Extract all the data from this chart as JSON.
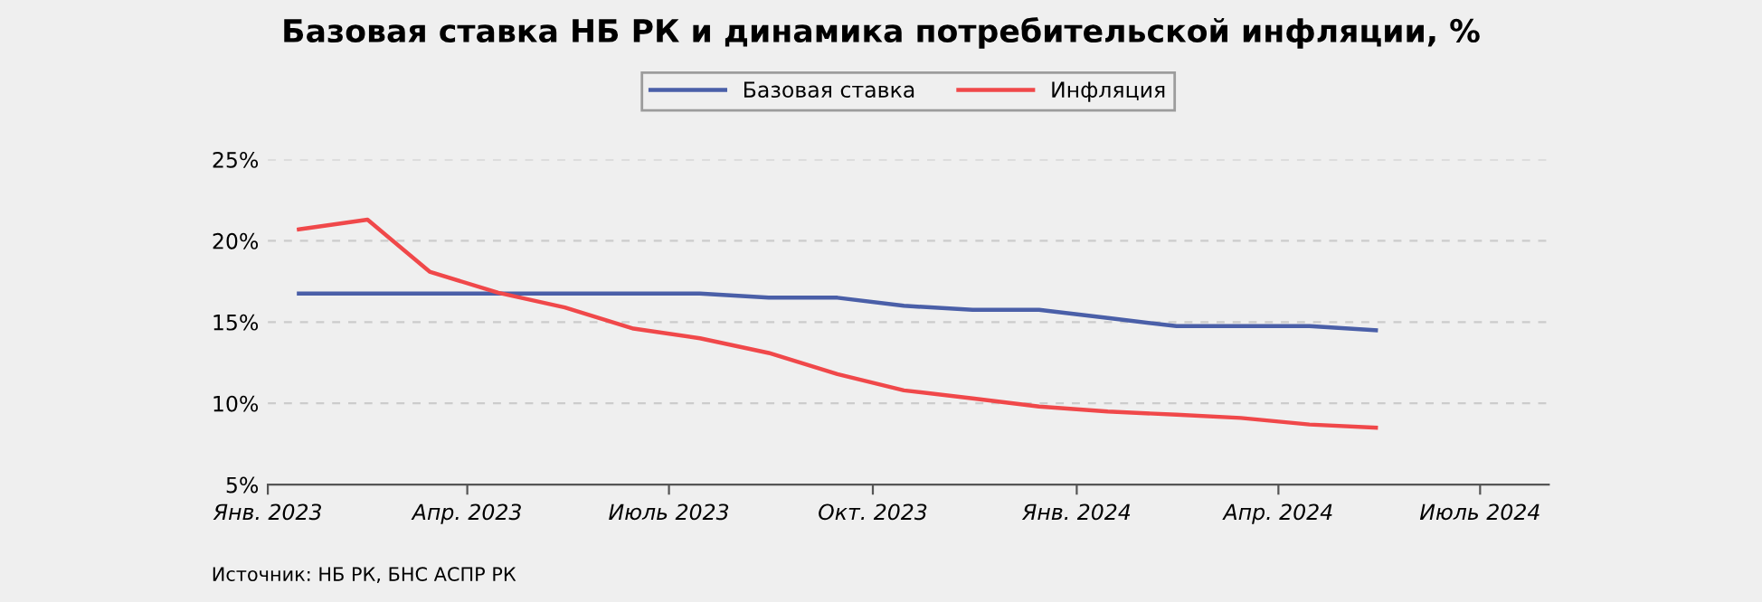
{
  "chart_data": {
    "type": "line",
    "title": "Базовая ставка НБ РК и динамика потребительской инфляции, %",
    "x": [
      "2023-01-15",
      "2023-02-15",
      "2023-03-15",
      "2023-04-15",
      "2023-05-15",
      "2023-06-15",
      "2023-07-15",
      "2023-08-15",
      "2023-09-15",
      "2023-10-15",
      "2023-11-15",
      "2023-12-15",
      "2024-01-15",
      "2024-02-15",
      "2024-03-15",
      "2024-04-15",
      "2024-05-15"
    ],
    "series": [
      {
        "name": "Базовая ставка",
        "color": "#4a5fa8",
        "values": [
          16.75,
          16.75,
          16.75,
          16.75,
          16.75,
          16.75,
          16.75,
          16.5,
          16.5,
          16.0,
          15.75,
          15.75,
          15.25,
          14.75,
          14.75,
          14.75,
          14.5
        ]
      },
      {
        "name": "Инфляция",
        "color": "#f0484a",
        "values": [
          20.7,
          21.3,
          18.1,
          16.8,
          15.9,
          14.6,
          14.0,
          13.1,
          11.8,
          10.8,
          10.3,
          9.8,
          9.5,
          9.3,
          9.1,
          8.7,
          8.5
        ]
      }
    ],
    "xlim": [
      "2023-01-01",
      "2024-08-01"
    ],
    "xticks": [
      {
        "value": "2023-01-01",
        "label": "Янв. 2023"
      },
      {
        "value": "2023-04-01",
        "label": "Апр. 2023"
      },
      {
        "value": "2023-07-01",
        "label": "Июль 2023"
      },
      {
        "value": "2023-10-01",
        "label": "Окт. 2023"
      },
      {
        "value": "2024-01-01",
        "label": "Янв. 2024"
      },
      {
        "value": "2024-04-01",
        "label": "Апр. 2024"
      },
      {
        "value": "2024-07-01",
        "label": "Июль 2024"
      }
    ],
    "ylim": [
      5,
      25
    ],
    "yticks": [
      {
        "value": 5,
        "label": "5%"
      },
      {
        "value": 10,
        "label": "10%"
      },
      {
        "value": 15,
        "label": "15%"
      },
      {
        "value": 20,
        "label": "20%"
      },
      {
        "value": 25,
        "label": "25%"
      }
    ],
    "grid": "y",
    "legend": "top",
    "marker": "none",
    "line_style": "solid",
    "annotations": [
      "Источник: НБ РК, БНС АСПР РК"
    ]
  }
}
